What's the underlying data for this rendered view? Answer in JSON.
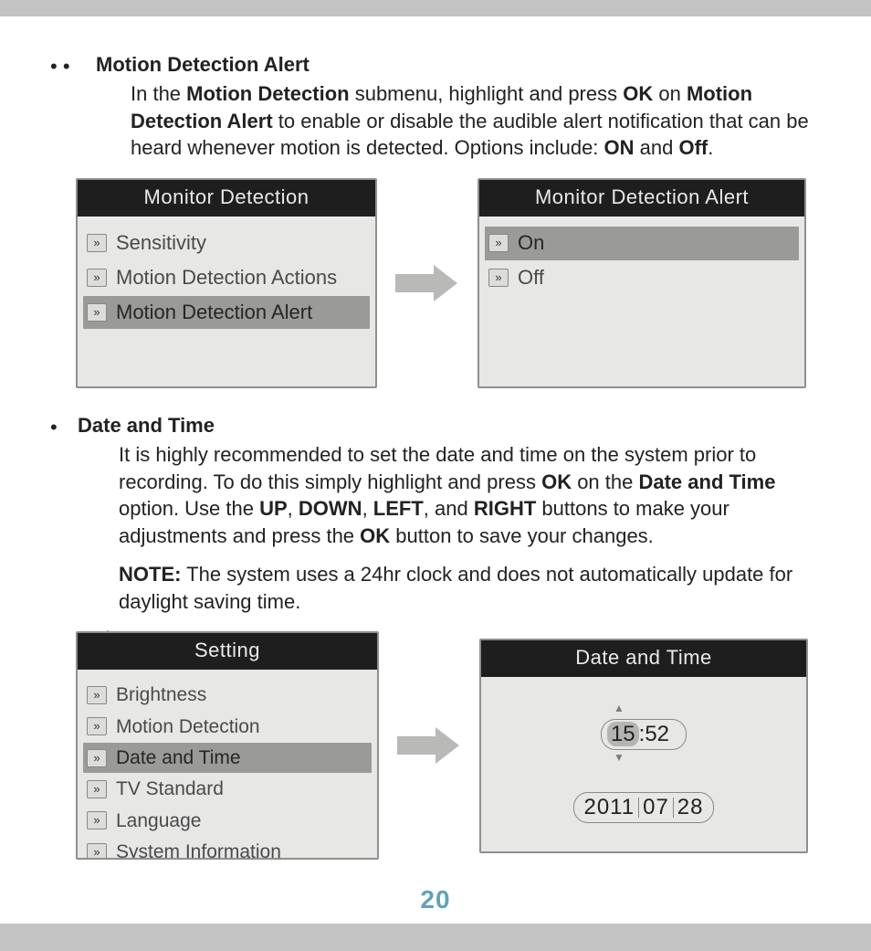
{
  "section1": {
    "bullet_prefix": "• •",
    "title": "Motion Detection Alert",
    "para_parts": {
      "p1": "In the ",
      "b1": "Motion Detection",
      "p2": " submenu, highlight and press ",
      "b2": "OK",
      "p3": " on ",
      "b3": "Motion Detection Alert",
      "p4": " to enable or disable the audible alert notification that can be heard whenever motion is detected. Options include: ",
      "b4": "ON",
      "p5": " and ",
      "b5": "Off",
      "p6": "."
    }
  },
  "menu1": {
    "title": "Monitor Detection",
    "items": [
      "Sensitivity",
      "Motion Detection Actions",
      "Motion Detection Alert"
    ],
    "selected_index": 2
  },
  "menu2": {
    "title": "Monitor Detection Alert",
    "items": [
      "On",
      "Off"
    ],
    "selected_index": 0
  },
  "section2": {
    "bullet_prefix": "•",
    "title": "Date and Time",
    "para_parts": {
      "p1": "It is highly recommended to set the date and time on the system prior to recording. To do this simply highlight and press ",
      "b1": "OK",
      "p2": " on the ",
      "b2": "Date and Time",
      "p3": " option. Use the ",
      "b3": "UP",
      "c1": ", ",
      "b4": "DOWN",
      "c2": ", ",
      "b5": "LEFT",
      "c3": ", and ",
      "b6": "RIGHT",
      "p4": " buttons to make your adjustments and press the ",
      "b7": "OK",
      "p5": " button to save your changes."
    },
    "note_label": "NOTE:",
    "note_text": " The system uses a 24hr clock and does not automatically update for daylight saving time.",
    "trailing_dot": "."
  },
  "menu3": {
    "title": "Setting",
    "items": [
      "Brightness",
      "Motion Detection",
      "Date and Time",
      "TV Standard",
      "Language",
      "System Information"
    ],
    "selected_index": 2
  },
  "datetime_panel": {
    "title": "Date and Time",
    "hour": "15",
    "minute": "52",
    "year": "2011",
    "month": "07",
    "day": "28"
  },
  "page_number": "20",
  "icon_glyph": "»",
  "colors": {
    "page_bg": "#ffffff",
    "outer_bg": "#c4c3c3",
    "menu_bg": "#e7e7e6",
    "menu_border": "#8f8f8d",
    "title_bar_bg": "#1e1e1e",
    "title_bar_fg": "#eaeaea",
    "selected_bg": "#9a9a98",
    "arrow_color": "#b9b9b8",
    "page_number_color": "#62a2b8"
  }
}
